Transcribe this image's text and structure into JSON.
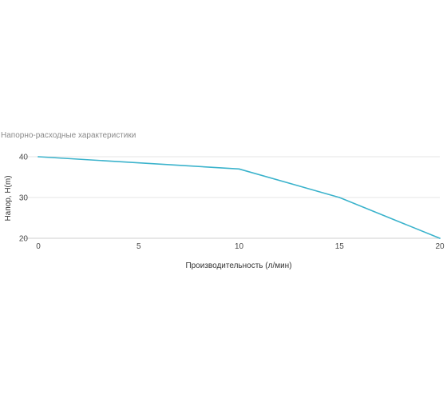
{
  "chart_data": {
    "type": "line",
    "title": "Напорно-расходные характеристики",
    "xlabel": "Производительность (л/мин)",
    "ylabel": "Напор, H(m)",
    "xlim": [
      0,
      20
    ],
    "ylim": [
      20,
      40
    ],
    "x_ticks": [
      0,
      5,
      10,
      15,
      20
    ],
    "y_ticks": [
      20,
      30,
      40
    ],
    "grid": true,
    "series": [
      {
        "x": [
          0,
          10,
          15,
          20
        ],
        "values": [
          40,
          37,
          30,
          20
        ],
        "color": "#3bb3cc"
      }
    ]
  }
}
